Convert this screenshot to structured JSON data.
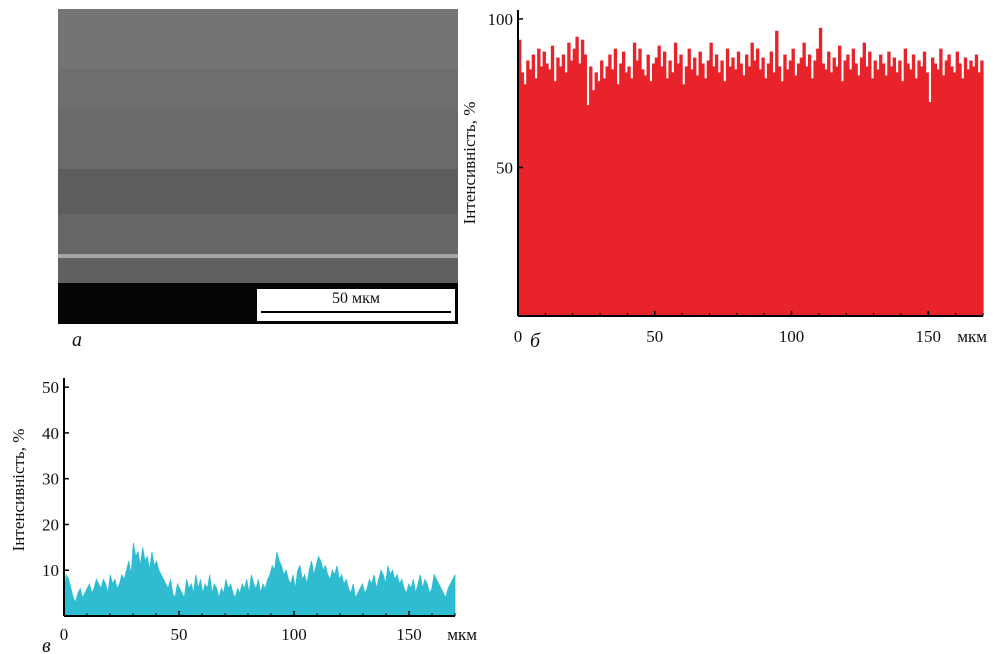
{
  "panels": {
    "a": {
      "label": "а",
      "scale_bar": "50 мкм"
    }
  },
  "chart_data": [
    {
      "panel_label": "б",
      "type": "bar",
      "color": "#e8232a",
      "ylabel": "Інтенсивність, %",
      "x_unit": "мкм",
      "xlim": [
        0,
        170
      ],
      "ylim": [
        0,
        103
      ],
      "x_ticks": [
        0,
        50,
        100,
        150
      ],
      "y_ticks": [
        50,
        100
      ],
      "x_step": 1,
      "values": [
        93,
        82,
        78,
        86,
        83,
        88,
        80,
        90,
        84,
        89,
        85,
        83,
        91,
        79,
        87,
        84,
        88,
        82,
        92,
        86,
        90,
        94,
        85,
        93,
        88,
        71,
        84,
        76,
        82,
        79,
        86,
        80,
        84,
        88,
        83,
        90,
        78,
        85,
        89,
        82,
        84,
        80,
        92,
        86,
        90,
        83,
        81,
        88,
        79,
        85,
        87,
        91,
        84,
        89,
        80,
        86,
        82,
        92,
        85,
        88,
        78,
        84,
        90,
        83,
        87,
        81,
        89,
        85,
        80,
        86,
        92,
        84,
        88,
        82,
        86,
        79,
        90,
        84,
        87,
        83,
        89,
        85,
        81,
        88,
        84,
        92,
        86,
        90,
        83,
        87,
        80,
        85,
        89,
        82,
        96,
        84,
        79,
        88,
        83,
        86,
        90,
        81,
        85,
        87,
        92,
        84,
        88,
        80,
        86,
        90,
        97,
        85,
        83,
        89,
        82,
        87,
        84,
        91,
        79,
        86,
        88,
        83,
        90,
        85,
        81,
        87,
        92,
        84,
        89,
        80,
        86,
        83,
        88,
        85,
        81,
        89,
        84,
        87,
        82,
        86,
        79,
        90,
        85,
        83,
        88,
        80,
        86,
        84,
        89,
        82,
        72,
        87,
        85,
        83,
        90,
        81,
        86,
        88,
        84,
        82,
        89,
        85,
        80,
        87,
        83,
        86,
        84,
        88,
        82,
        86
      ]
    },
    {
      "panel_label": "в",
      "type": "area",
      "color": "#2fbcd1",
      "ylabel": "Інтенсивність, %",
      "x_unit": "мкм",
      "xlim": [
        0,
        170
      ],
      "ylim": [
        0,
        52
      ],
      "x_ticks": [
        0,
        50,
        100,
        150
      ],
      "y_ticks": [
        10,
        20,
        30,
        40,
        50
      ],
      "x_step": 1,
      "values": [
        5,
        9,
        8,
        6,
        4,
        3,
        5,
        6,
        4,
        5,
        6,
        7,
        5,
        6,
        8,
        7,
        6,
        8,
        7,
        5,
        9,
        7,
        8,
        6,
        7,
        9,
        8,
        10,
        12,
        9,
        16,
        13,
        14,
        11,
        15,
        12,
        13,
        10,
        14,
        11,
        12,
        10,
        9,
        8,
        7,
        6,
        8,
        5,
        4,
        7,
        6,
        5,
        4,
        8,
        6,
        7,
        5,
        9,
        6,
        8,
        5,
        7,
        6,
        9,
        5,
        7,
        6,
        4,
        6,
        5,
        8,
        6,
        7,
        5,
        4,
        6,
        5,
        7,
        6,
        8,
        5,
        9,
        7,
        6,
        8,
        5,
        7,
        6,
        8,
        9,
        11,
        10,
        14,
        12,
        11,
        9,
        10,
        8,
        7,
        9,
        6,
        10,
        11,
        8,
        9,
        7,
        10,
        12,
        9,
        11,
        13,
        12,
        10,
        11,
        9,
        8,
        10,
        9,
        11,
        8,
        9,
        7,
        8,
        6,
        5,
        7,
        4,
        5,
        6,
        7,
        5,
        6,
        8,
        7,
        9,
        6,
        8,
        10,
        9,
        7,
        11,
        9,
        10,
        8,
        9,
        7,
        8,
        6,
        5,
        7,
        6,
        8,
        5,
        7,
        9,
        6,
        8,
        7,
        5,
        6,
        9,
        8,
        7,
        6,
        5,
        4,
        6,
        7,
        8,
        9
      ]
    }
  ]
}
